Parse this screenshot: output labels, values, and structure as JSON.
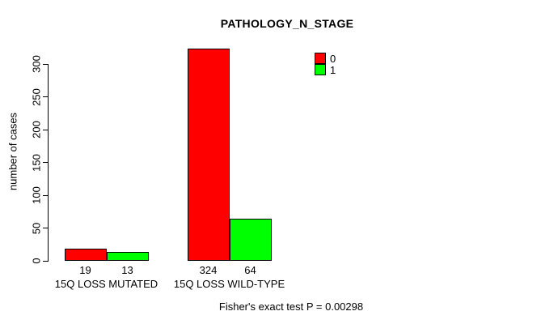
{
  "chart_data": {
    "type": "bar",
    "title": "PATHOLOGY_N_STAGE",
    "xlabel": "",
    "ylabel": "number of cases",
    "categories": [
      "15Q LOSS MUTATED",
      "15Q LOSS WILD-TYPE"
    ],
    "series": [
      {
        "name": "0",
        "color": "#ff0000",
        "values": [
          19,
          324
        ]
      },
      {
        "name": "1",
        "color": "#00ff00",
        "values": [
          13,
          64
        ]
      }
    ],
    "bar_value_labels": [
      [
        "19",
        "13"
      ],
      [
        "324",
        "64"
      ]
    ],
    "ylim": [
      0,
      300
    ],
    "yticks": [
      "0",
      "50",
      "100",
      "150",
      "200",
      "250",
      "300"
    ],
    "grid": false,
    "legend_position": "top-right",
    "bar_border_color": "#000000",
    "footer": "Fisher's exact test P = 0.00298"
  }
}
